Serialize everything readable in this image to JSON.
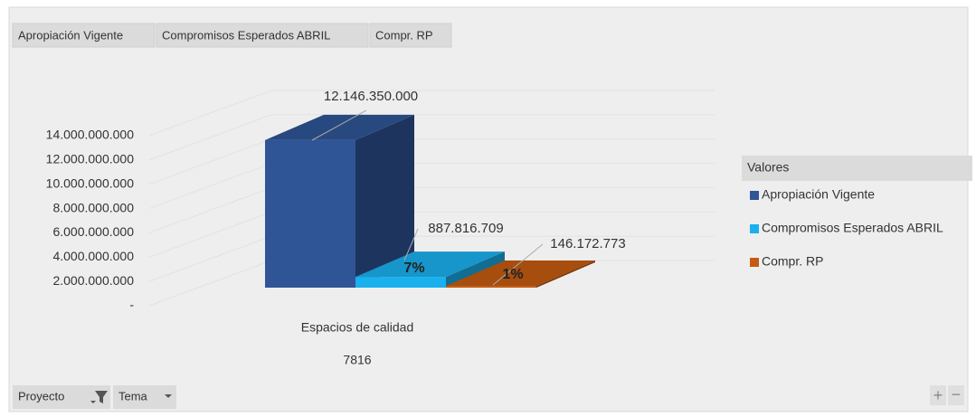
{
  "chart_data": {
    "type": "bar3d",
    "categories": [
      "Espacios de calidad"
    ],
    "category_group": "7816",
    "legend_title": "Valores",
    "legend": "right",
    "field_buttons": [
      "Proyecto",
      "Tema"
    ],
    "series": [
      {
        "name": "Apropiación Vigente",
        "color": "#2f5597",
        "values": [
          12146350000
        ],
        "value_labels": [
          "12.146.350.000"
        ]
      },
      {
        "name": "Compromisos  Esperados ABRIL",
        "color": "#1ab0ee",
        "values": [
          887816709
        ],
        "value_labels": [
          "887.816.709"
        ],
        "percent_labels": [
          "7%"
        ]
      },
      {
        "name": "Compr. RP",
        "color": "#c55a11",
        "values": [
          146172773
        ],
        "value_labels": [
          "146.172.773"
        ],
        "percent_labels": [
          "1%"
        ]
      }
    ],
    "ylim": [
      0,
      14000000000
    ],
    "yticks": [
      {
        "value": 0,
        "label": "-"
      },
      {
        "value": 2000000000,
        "label": "2.000.000.000"
      },
      {
        "value": 4000000000,
        "label": "4.000.000.000"
      },
      {
        "value": 6000000000,
        "label": "6.000.000.000"
      },
      {
        "value": 8000000000,
        "label": "8.000.000.000"
      },
      {
        "value": 10000000000,
        "label": "10.000.000.000"
      },
      {
        "value": 12000000000,
        "label": "12.000.000.000"
      },
      {
        "value": 14000000000,
        "label": "14.000.000.000"
      }
    ],
    "grid": true
  }
}
